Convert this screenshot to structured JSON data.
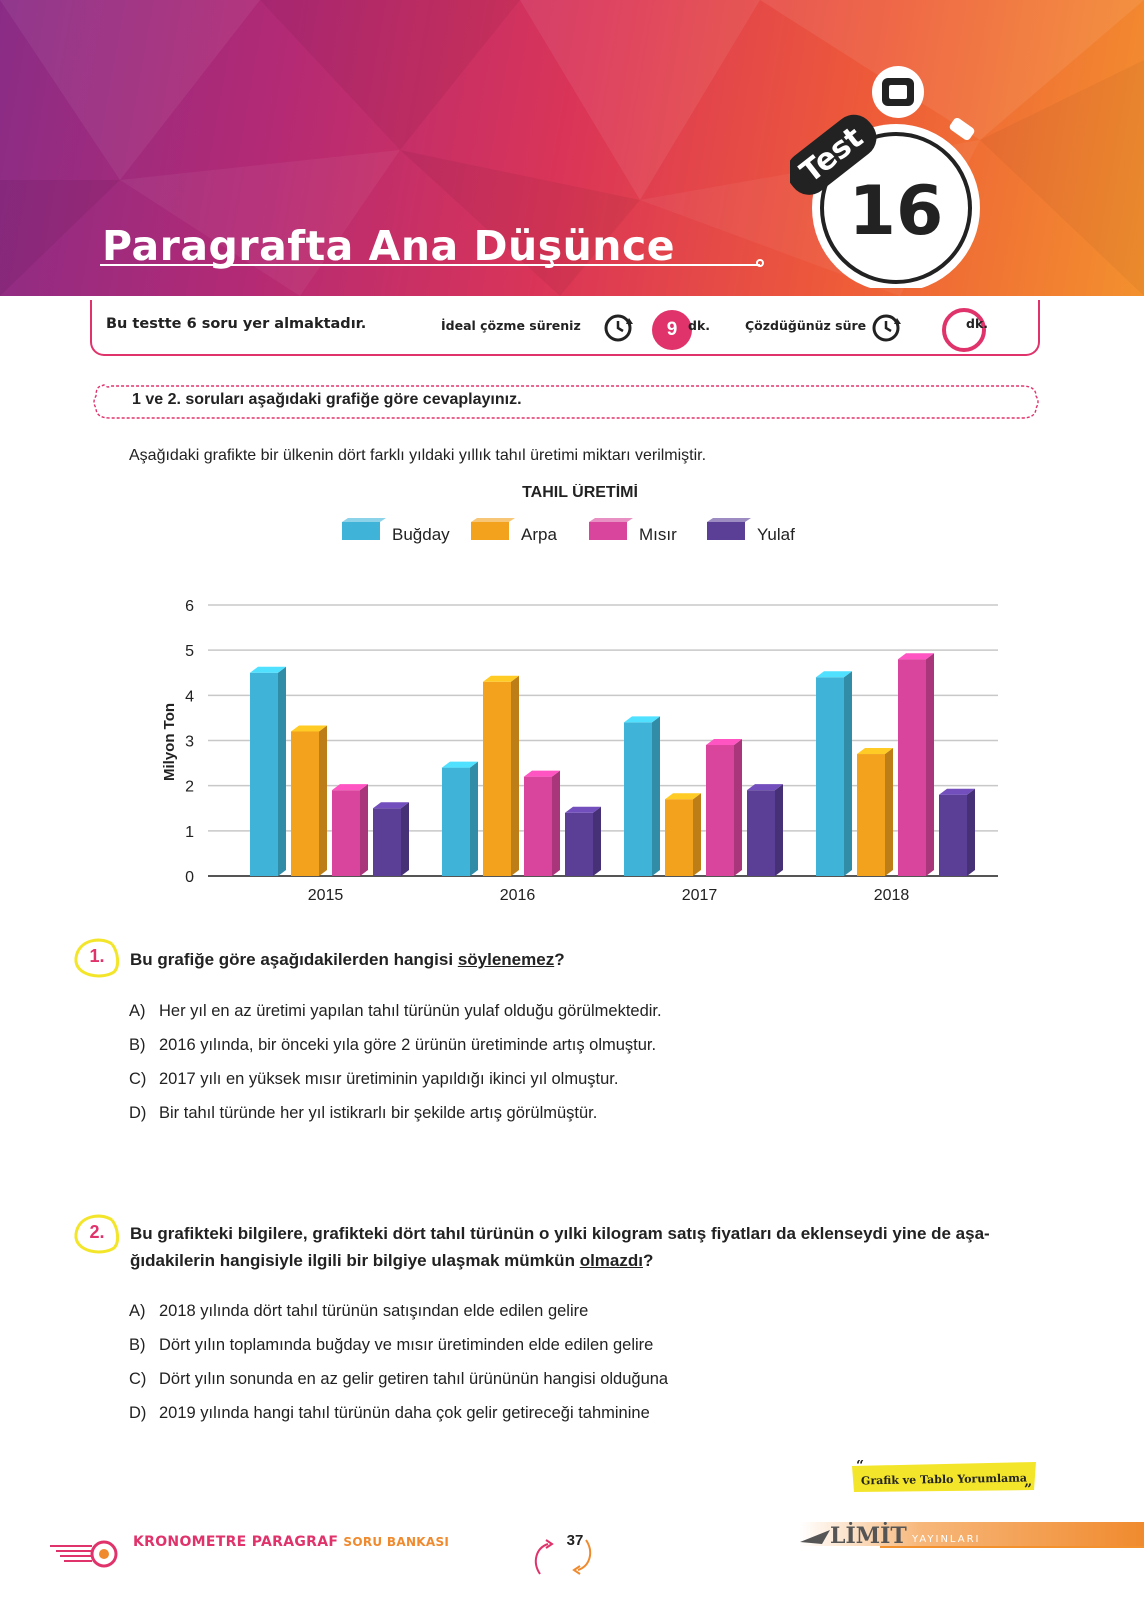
{
  "header": {
    "title": "Paragrafta Ana Düşünce",
    "test_label": "Test",
    "test_number": "16"
  },
  "info_bar": {
    "question_count_text": "Bu testte 6 soru yer almaktadır.",
    "ideal_label": "İdeal çözme süreniz",
    "ideal_minutes": "9",
    "ideal_unit": "dk.",
    "solved_label": "Çözdüğünüz süre",
    "solved_unit": "dk."
  },
  "instruction": "1 ve 2. soruları aşağıdaki grafiğe göre cevaplayınız.",
  "intro": "Aşağıdaki grafikte bir ülkenin dört farklı yıldaki yıllık tahıl üretimi miktarı verilmiştir.",
  "chart_data": {
    "type": "bar",
    "title": "TAHIL ÜRETİMİ",
    "ylabel": "Milyon Ton",
    "xlabel": "",
    "ylim": [
      0,
      6
    ],
    "yticks": [
      "0",
      "1",
      "2",
      "3",
      "4",
      "5",
      "6"
    ],
    "categories": [
      "2015",
      "2016",
      "2017",
      "2018"
    ],
    "legend_position": "top",
    "grid": true,
    "series": [
      {
        "name": "Buğday",
        "color": "#3fb4d8",
        "values": [
          4.5,
          2.4,
          3.4,
          4.4
        ]
      },
      {
        "name": "Arpa",
        "color": "#f2a21d",
        "values": [
          3.2,
          4.3,
          1.7,
          2.7
        ]
      },
      {
        "name": "Mısır",
        "color": "#d9449c",
        "values": [
          1.9,
          2.2,
          2.9,
          4.8
        ]
      },
      {
        "name": "Yulaf",
        "color": "#5b3f97",
        "values": [
          1.5,
          1.4,
          1.9,
          1.8
        ]
      }
    ]
  },
  "questions": [
    {
      "number": "1.",
      "text_before": "Bu grafiğe göre aşağıdakilerden hangisi ",
      "text_underlined": "söylenemez",
      "text_after": "?",
      "options": [
        {
          "letter": "A)",
          "text": "Her yıl en az üretimi yapılan tahıl türünün yulaf olduğu görülmektedir."
        },
        {
          "letter": "B)",
          "text": "2016 yılında, bir önceki yıla göre 2 ürünün üretiminde artış olmuştur."
        },
        {
          "letter": "C)",
          "text": "2017 yılı en yüksek mısır üretiminin yapıldığı ikinci yıl olmuştur."
        },
        {
          "letter": "D)",
          "text": "Bir tahıl türünde her yıl istikrarlı bir şekilde artış görülmüştür."
        }
      ]
    },
    {
      "number": "2.",
      "text_before": "Bu grafikteki bilgilere, grafikteki dört tahıl türünün o yılki kilogram satış fiyatları da eklenseydi yine de aşa-ğıdakilerin hangisiyle ilgili bir bilgiye ulaşmak mümkün ",
      "text_underlined": "olmazdı",
      "text_after": "?",
      "options": [
        {
          "letter": "A)",
          "text": "2018 yılında dört tahıl türünün satışından elde edilen gelire"
        },
        {
          "letter": "B)",
          "text": "Dört yılın toplamında buğday ve mısır üretiminden elde edilen gelire"
        },
        {
          "letter": "C)",
          "text": "Dört yılın sonunda en az gelir getiren tahıl ürününün hangisi olduğuna"
        },
        {
          "letter": "D)",
          "text": "2019 yılında hangi tahıl türünün daha çok gelir getireceği tahminine"
        }
      ]
    }
  ],
  "topic_tag": "Grafik ve Tablo Yorumlama",
  "footer": {
    "brand_main": "KRONOMETRE PARAGRAF",
    "brand_sub": "SORU BANKASI",
    "page_number": "37",
    "publisher_main": "LİMİT",
    "publisher_sub": "YAYINLARI"
  }
}
